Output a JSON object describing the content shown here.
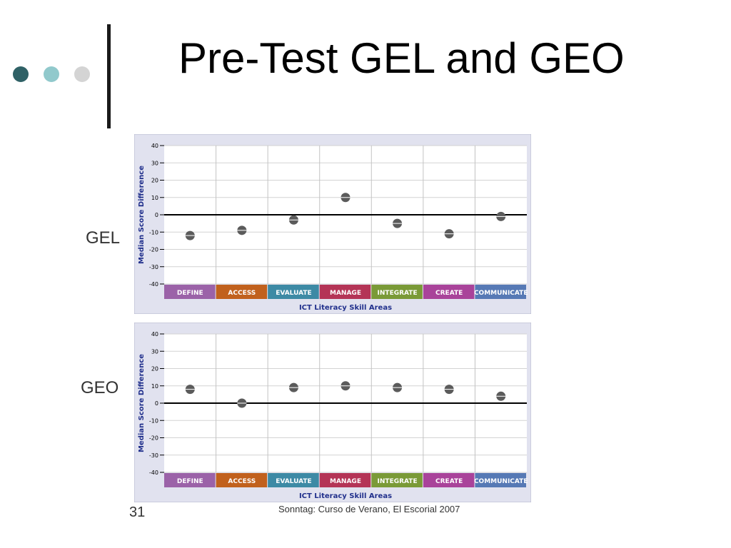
{
  "slide": {
    "title": "Pre-Test GEL and GEO",
    "slide_number": "31",
    "footer": "Sonntag: Curso de Verano, El Escorial 2007",
    "decor_dot_colors": [
      "#2f6166",
      "#91c9cc",
      "#d4d4d4"
    ]
  },
  "chart_data": [
    {
      "type": "scatter",
      "side_label": "GEL",
      "title": "",
      "xlabel": "ICT Literacy Skill Areas",
      "ylabel": "Median Score Difference",
      "ylim": [
        -40,
        40
      ],
      "yticks": [
        40,
        30,
        20,
        10,
        0,
        -10,
        -20,
        -30,
        -40
      ],
      "grid": true,
      "categories": [
        {
          "label": "DEFINE",
          "color": "#9b62a8"
        },
        {
          "label": "ACCESS",
          "color": "#c1611d"
        },
        {
          "label": "EVALUATE",
          "color": "#3d8aa5"
        },
        {
          "label": "MANAGE",
          "color": "#b43456"
        },
        {
          "label": "INTEGRATE",
          "color": "#7a9a37"
        },
        {
          "label": "CREATE",
          "color": "#a9439a"
        },
        {
          "label": "COMMUNICATE",
          "color": "#5679b5"
        }
      ],
      "values": [
        -12,
        -9,
        -3,
        10,
        -5,
        -11,
        -1
      ]
    },
    {
      "type": "scatter",
      "side_label": "GEO",
      "title": "",
      "xlabel": "ICT Literacy Skill Areas",
      "ylabel": "Median Score Difference",
      "ylim": [
        -40,
        40
      ],
      "yticks": [
        40,
        30,
        20,
        10,
        0,
        -10,
        -20,
        -30,
        -40
      ],
      "grid": true,
      "categories": [
        {
          "label": "DEFINE",
          "color": "#9b62a8"
        },
        {
          "label": "ACCESS",
          "color": "#c1611d"
        },
        {
          "label": "EVALUATE",
          "color": "#3d8aa5"
        },
        {
          "label": "MANAGE",
          "color": "#b43456"
        },
        {
          "label": "INTEGRATE",
          "color": "#7a9a37"
        },
        {
          "label": "CREATE",
          "color": "#a9439a"
        },
        {
          "label": "COMMUNICATE",
          "color": "#5679b5"
        }
      ],
      "values": [
        8,
        0,
        9,
        10,
        9,
        8,
        4
      ]
    }
  ]
}
